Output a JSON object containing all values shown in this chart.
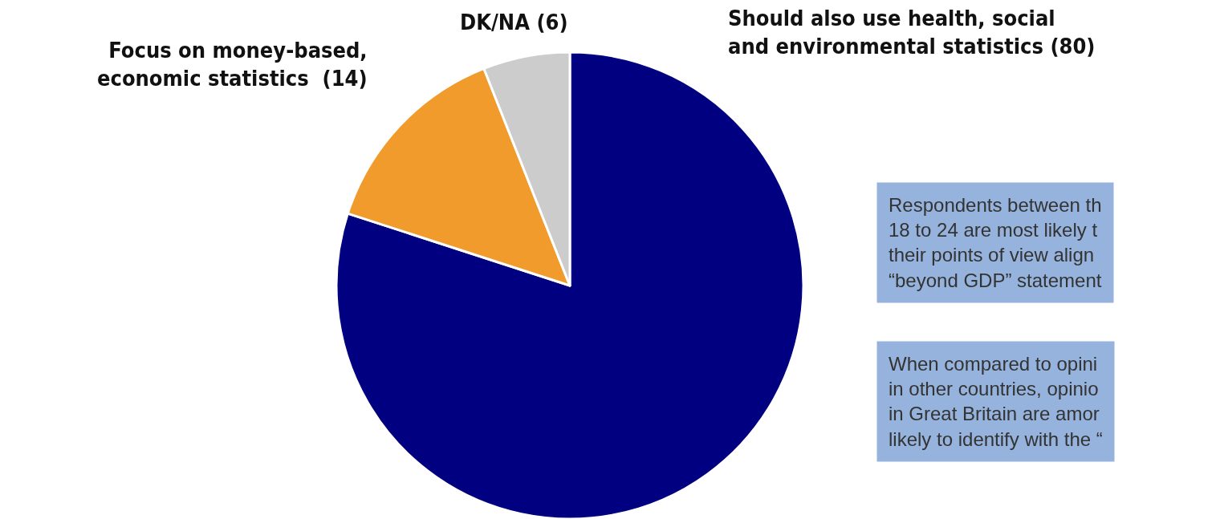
{
  "chart_data": {
    "type": "pie",
    "categories": [
      "Should also use health, social\nand environmental statistics (80)",
      "Focus on money-based,\neconomic statistics  (14)",
      "DK/NA (6)"
    ],
    "values": [
      80,
      14,
      6
    ],
    "colors": [
      "#000080",
      "#f19b2c",
      "#cccccc"
    ],
    "legend": false,
    "annotations": [
      "Respondents between th\n18 to 24 are most likely t\ntheir points of view align\n“beyond GDP” statement",
      "When compared to opini\nin other countries, opinio\nin Great Britain are amor\nlikely to identify with the “"
    ]
  }
}
